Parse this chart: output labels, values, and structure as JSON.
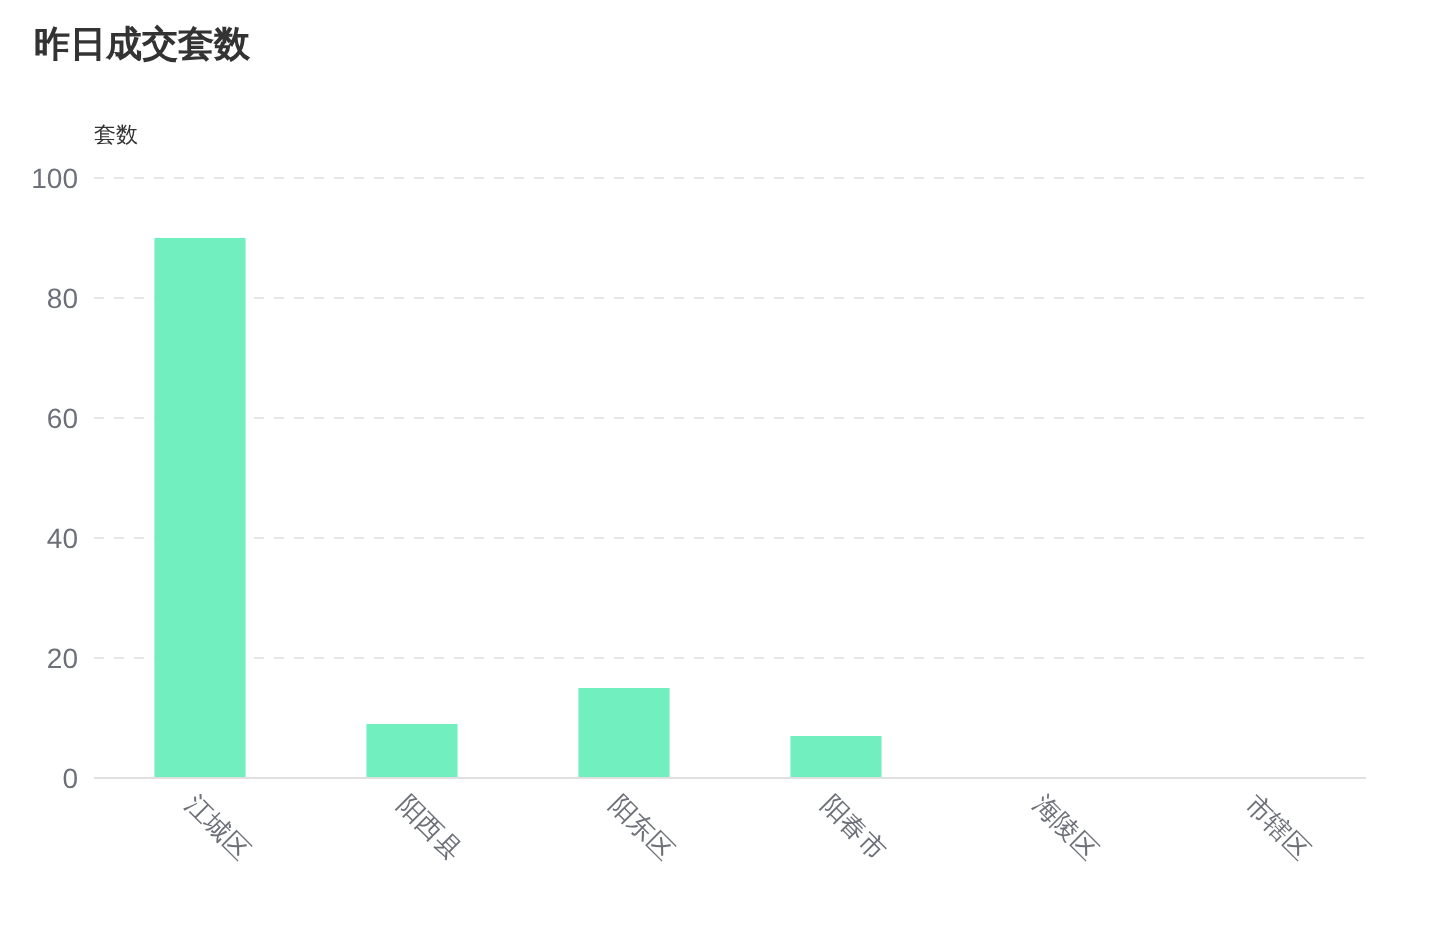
{
  "chart_data": {
    "type": "bar",
    "title": "昨日成交套数",
    "ylabel": "套数",
    "categories": [
      "江城区",
      "阳西县",
      "阳东区",
      "阳春市",
      "海陵区",
      "市辖区"
    ],
    "values": [
      90,
      9,
      15,
      7,
      0,
      0
    ],
    "color": "#72efbf",
    "ylim": [
      0,
      100
    ],
    "yticks": [
      0,
      20,
      40,
      60,
      80,
      100
    ],
    "grid": "y"
  }
}
